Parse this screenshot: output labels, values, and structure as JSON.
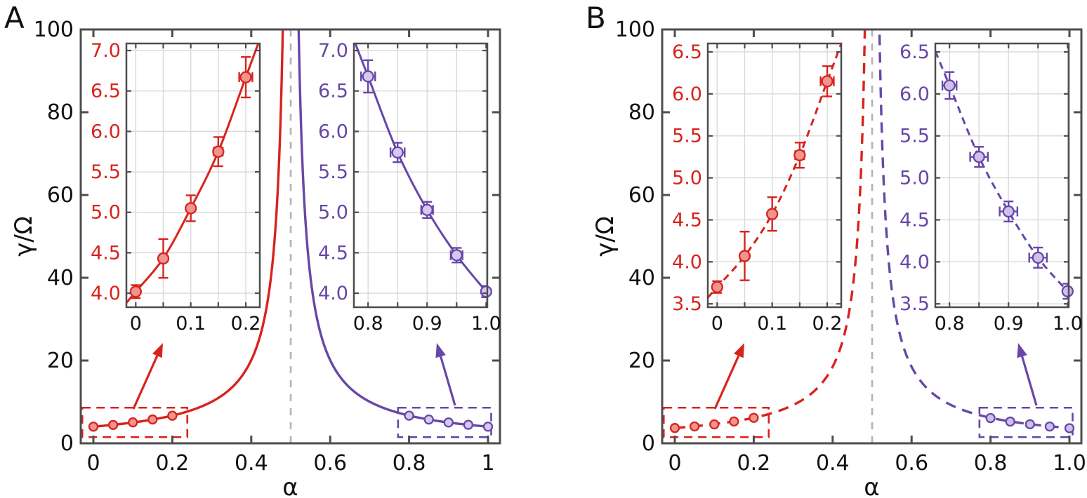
{
  "chart_data": {
    "type": "line",
    "figure_bg": "#ffffff",
    "axis_color": "#4d4d4d",
    "grid_color": "#d9d9d9",
    "text_color": "#111111",
    "panels": [
      {
        "panel_label": "A",
        "xlabel": "α",
        "ylabel": "γ/Ω",
        "line_dashed": false,
        "xlim": [
          -0.035,
          1.035
        ],
        "ylim": [
          0,
          100
        ],
        "xtick_values": [
          0,
          0.2,
          0.4,
          0.6,
          0.8,
          1.0
        ],
        "xtick_labels": [
          "0",
          "0.2",
          "0.4",
          "0.6",
          "0.8",
          "1"
        ],
        "ytick_values": [
          0,
          20,
          40,
          60,
          80,
          100
        ],
        "ytick_labels": [
          "0",
          "20",
          "40",
          "60",
          "80",
          "100"
        ],
        "vline_x": 0.5,
        "vline_color": "#b3b3b3",
        "model": "gamma/Omega = c / |1 - 2*alpha|",
        "model_c": 4.02,
        "series": [
          {
            "name": "alpha-below-half",
            "color": "#d8231d",
            "marker_fill": "#f0958d",
            "x": [
              0,
              0.05,
              0.1,
              0.15,
              0.2
            ],
            "y": [
              4.02,
              4.43,
              5.05,
              5.75,
              6.67
            ],
            "yerr": [
              0.08,
              0.24,
              0.16,
              0.18,
              0.25
            ],
            "xerr": [
              0.003,
              0.004,
              0.005,
              0.008,
              0.012
            ]
          },
          {
            "name": "alpha-above-half",
            "color": "#6747a8",
            "marker_fill": "#d6c9ef",
            "x": [
              0.8,
              0.85,
              0.9,
              0.95,
              1.0
            ],
            "y": [
              6.68,
              5.74,
              5.03,
              4.47,
              4.02
            ],
            "yerr": [
              0.2,
              0.12,
              0.1,
              0.09,
              0.07
            ],
            "xerr": [
              0.012,
              0.012,
              0.01,
              0.01,
              0.004
            ]
          }
        ],
        "zoom_boxes": [
          {
            "series_index": 0,
            "x0": -0.028,
            "x1": 0.238,
            "y0": 1.5,
            "y1": 8.6
          },
          {
            "series_index": 1,
            "x0": 0.772,
            "x1": 1.008,
            "y0": 1.5,
            "y1": 8.6
          }
        ],
        "insets": [
          {
            "series_index": 0,
            "xlim": [
              -0.017,
              0.2255
            ],
            "ylim": [
              3.827,
              7.087
            ],
            "xtick_values": [
              0,
              0.05,
              0.1,
              0.15,
              0.2
            ],
            "xtick_labels": [
              "0",
              "",
              "0.1",
              "",
              "0.2"
            ],
            "ytick_values": [
              4.0,
              4.5,
              5.0,
              5.5,
              6.0,
              6.5,
              7.0
            ],
            "ytick_labels": [
              "4.0",
              "4.5",
              "5.0",
              "5.5",
              "6.0",
              "6.5",
              "7.0"
            ]
          },
          {
            "series_index": 1,
            "xlim": [
              0.776,
              1.002
            ],
            "ylim": [
              3.827,
              7.087
            ],
            "xtick_values": [
              0.8,
              0.85,
              0.9,
              0.95,
              1.0
            ],
            "xtick_labels": [
              "0.8",
              "",
              "0.9",
              "",
              "1.0"
            ],
            "ytick_values": [
              4.0,
              4.5,
              5.0,
              5.5,
              6.0,
              6.5,
              7.0
            ],
            "ytick_labels": [
              "4.0",
              "4.5",
              "5.0",
              "5.5",
              "6.0",
              "6.5",
              "7.0"
            ]
          }
        ]
      },
      {
        "panel_label": "B",
        "xlabel": "α",
        "ylabel": "γ/Ω",
        "line_dashed": true,
        "xlim": [
          -0.035,
          1.035
        ],
        "ylim": [
          0,
          100
        ],
        "xtick_values": [
          0,
          0.2,
          0.4,
          0.6,
          0.8,
          1.0
        ],
        "xtick_labels": [
          "0",
          "0.2",
          "0.4",
          "0.6",
          "0.8",
          "1.0"
        ],
        "ytick_values": [
          0,
          20,
          40,
          60,
          80,
          100
        ],
        "ytick_labels": [
          "0",
          "20",
          "40",
          "60",
          "80",
          "100"
        ],
        "vline_x": 0.5,
        "vline_color": "#b3b3b3",
        "model": "gamma/Omega = c / |1 - 2*alpha|",
        "model_c": 3.7,
        "series": [
          {
            "name": "alpha-below-half",
            "color": "#d8231d",
            "marker_fill": "#f0958d",
            "x": [
              0,
              0.05,
              0.1,
              0.15,
              0.2
            ],
            "y": [
              3.7,
              4.07,
              4.57,
              5.27,
              6.15
            ],
            "yerr": [
              0.07,
              0.29,
              0.2,
              0.15,
              0.18
            ],
            "xerr": [
              0.003,
              0.004,
              0.005,
              0.008,
              0.012
            ]
          },
          {
            "name": "alpha-above-half",
            "color": "#6747a8",
            "marker_fill": "#cfc0ea",
            "x": [
              0.8,
              0.85,
              0.9,
              0.95,
              1.0
            ],
            "y": [
              6.1,
              5.25,
              4.6,
              4.05,
              3.65
            ],
            "yerr": [
              0.16,
              0.12,
              0.12,
              0.12,
              0.09
            ],
            "xerr": [
              0.012,
              0.015,
              0.015,
              0.015,
              0.005
            ]
          }
        ],
        "zoom_boxes": [
          {
            "series_index": 0,
            "x0": -0.028,
            "x1": 0.238,
            "y0": 1.5,
            "y1": 8.6
          },
          {
            "series_index": 1,
            "x0": 0.772,
            "x1": 1.008,
            "y0": 1.5,
            "y1": 8.6
          }
        ],
        "insets": [
          {
            "series_index": 0,
            "xlim": [
              -0.017,
              0.2255
            ],
            "ylim": [
              3.46,
              6.6
            ],
            "xtick_values": [
              0,
              0.05,
              0.1,
              0.15,
              0.2
            ],
            "xtick_labels": [
              "0",
              "",
              "0.1",
              "",
              "0.2"
            ],
            "ytick_values": [
              3.5,
              4.0,
              4.5,
              5.0,
              5.5,
              6.0,
              6.5
            ],
            "ytick_labels": [
              "3.5",
              "4.0",
              "4.5",
              "5.0",
              "5.5",
              "6.0",
              "6.5"
            ]
          },
          {
            "series_index": 1,
            "xlim": [
              0.776,
              1.002
            ],
            "ylim": [
              3.46,
              6.6
            ],
            "xtick_values": [
              0.8,
              0.85,
              0.9,
              0.95,
              1.0
            ],
            "xtick_labels": [
              "0.8",
              "",
              "0.9",
              "",
              "1.0"
            ],
            "ytick_values": [
              3.5,
              4.0,
              4.5,
              5.0,
              5.5,
              6.0,
              6.5
            ],
            "ytick_labels": [
              "3.5",
              "4.0",
              "4.5",
              "5.0",
              "5.5",
              "6.0",
              "6.5"
            ]
          }
        ]
      }
    ]
  }
}
